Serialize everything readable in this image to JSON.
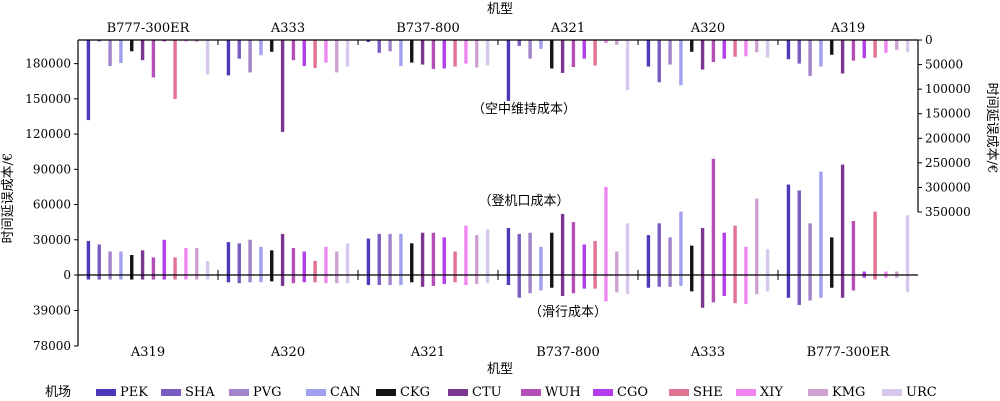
{
  "colors": {
    "PEK": "#4a3aba",
    "SHA": "#7a5cc0",
    "PVG": "#a184cb",
    "CAN": "#a0a0ec",
    "CKG": "#141414",
    "CTU": "#7b3690",
    "WUH": "#b34fb6",
    "CGO": "#b53ced",
    "SHE": "#df7391",
    "XIY": "#ef86ef",
    "KMG": "#cfa2d2",
    "URC": "#d6c9ec"
  },
  "legend": {
    "title": "机场",
    "items": [
      "PEK",
      "SHA",
      "PVG",
      "CAN",
      "CKG",
      "CTU",
      "WUH",
      "CGO",
      "SHE",
      "XIY",
      "KMG",
      "URC"
    ]
  },
  "chart_data": {
    "type": "bar",
    "airports": [
      "PEK",
      "SHA",
      "PVG",
      "CAN",
      "CKG",
      "CTU",
      "WUH",
      "CGO",
      "SHE",
      "XIY",
      "KMG",
      "URC"
    ],
    "top_panel": {
      "annotation": "（空中维持成本）",
      "xlabel": "机型",
      "ylabel": "时间延误成本/€",
      "categories": [
        "B777-300ER",
        "A333",
        "B737-800",
        "A321",
        "A320",
        "A319"
      ],
      "yticks": [
        0,
        50000,
        100000,
        150000,
        200000,
        250000,
        300000,
        350000
      ],
      "ylim": [
        0,
        350000
      ],
      "inverted": true,
      "series": [
        {
          "category": "B777-300ER",
          "values": [
            163000,
            3000,
            53000,
            47000,
            23000,
            41000,
            76000,
            3000,
            120000,
            3000,
            4000,
            70000
          ]
        },
        {
          "category": "A333",
          "values": [
            72000,
            38000,
            66000,
            31000,
            24000,
            187000,
            41000,
            53000,
            57000,
            46000,
            66000,
            54000
          ]
        },
        {
          "category": "B737-800",
          "values": [
            4000,
            26000,
            23000,
            53000,
            46000,
            50000,
            59000,
            58000,
            54000,
            48000,
            56000,
            52000
          ]
        },
        {
          "category": "A321",
          "values": [
            124000,
            12000,
            38000,
            18000,
            58000,
            67000,
            55000,
            38000,
            52000,
            6000,
            10000,
            102000
          ]
        },
        {
          "category": "A320",
          "values": [
            54000,
            86000,
            50000,
            92000,
            24000,
            60000,
            45000,
            38000,
            34000,
            33000,
            25000,
            36000
          ]
        },
        {
          "category": "A319",
          "values": [
            39000,
            48000,
            73000,
            54000,
            30000,
            68000,
            42000,
            37000,
            36000,
            26000,
            20000,
            25000
          ]
        }
      ]
    },
    "upper_bottom_panel": {
      "annotation": "（登机口成本）",
      "ylabel": "时间延误成本/€",
      "categories": [
        "A319",
        "A320",
        "A321",
        "B737-800",
        "A333",
        "B777-300ER"
      ],
      "yticks": [
        0,
        30000,
        60000,
        90000,
        120000,
        150000,
        180000
      ],
      "ylim": [
        0,
        195000
      ],
      "series": [
        {
          "category": "A319",
          "values": [
            29000,
            26000,
            20000,
            20000,
            17000,
            21000,
            15000,
            30000,
            15000,
            23000,
            23000,
            12000
          ]
        },
        {
          "category": "A320",
          "values": [
            28000,
            27000,
            30000,
            24000,
            21000,
            35000,
            23000,
            20000,
            12000,
            24000,
            20000,
            27000
          ]
        },
        {
          "category": "A321",
          "values": [
            31000,
            35000,
            35000,
            35000,
            27000,
            36000,
            36000,
            32000,
            20000,
            42000,
            34000,
            39000
          ]
        },
        {
          "category": "B737-800",
          "values": [
            40000,
            35000,
            36000,
            24000,
            36000,
            52000,
            45000,
            26000,
            29000,
            75000,
            20000,
            44000
          ]
        },
        {
          "category": "A333",
          "values": [
            34000,
            44000,
            32000,
            54000,
            25000,
            40000,
            99000,
            36000,
            42000,
            24000,
            65000,
            22000
          ]
        },
        {
          "category": "B777-300ER",
          "values": [
            77000,
            72000,
            44000,
            88000,
            32000,
            94000,
            46000,
            3000,
            54000,
            3000,
            3000,
            51000
          ]
        }
      ]
    },
    "lower_bottom_panel": {
      "annotation": "（滑行成本）",
      "xlabel": "机型",
      "yticks": [
        0,
        39000,
        78000
      ],
      "ytick_labels": [
        "0",
        "39000",
        "78000"
      ],
      "ylim": [
        0,
        78000
      ],
      "inverted": true,
      "categories": [
        "A319",
        "A320",
        "A321",
        "B737-800",
        "A333",
        "B777-300ER"
      ],
      "series": [
        {
          "category": "A319",
          "values": [
            5000,
            5000,
            5000,
            5000,
            5000,
            5000,
            5000,
            5000,
            5000,
            5000,
            5000,
            5000
          ]
        },
        {
          "category": "A320",
          "values": [
            8000,
            9000,
            8000,
            8000,
            7000,
            12000,
            9000,
            8000,
            8000,
            9000,
            9000,
            9000
          ]
        },
        {
          "category": "A321",
          "values": [
            11000,
            11000,
            11000,
            11000,
            8000,
            13000,
            12000,
            10000,
            8000,
            11000,
            10000,
            9000
          ]
        },
        {
          "category": "B737-800",
          "values": [
            11000,
            25000,
            20000,
            17000,
            14000,
            23000,
            20000,
            15000,
            15000,
            29000,
            19000,
            21000
          ]
        },
        {
          "category": "A333",
          "values": [
            14000,
            13000,
            13000,
            12000,
            18000,
            36000,
            30000,
            23000,
            31000,
            32000,
            21000,
            18000
          ]
        },
        {
          "category": "B777-300ER",
          "values": [
            25000,
            33000,
            28000,
            25000,
            14000,
            25000,
            17000,
            3000,
            5000,
            3000,
            3000,
            19000
          ]
        }
      ]
    }
  }
}
